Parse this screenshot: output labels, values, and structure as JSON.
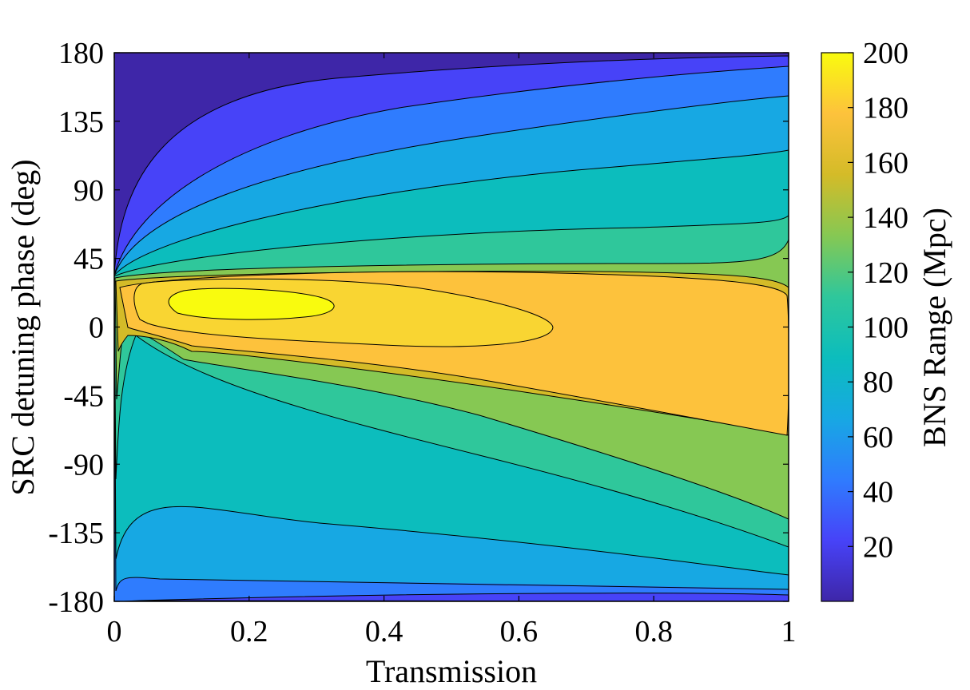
{
  "chart_data": {
    "type": "contour",
    "xlabel": "Transmission",
    "ylabel": "SRC detuning phase (deg)",
    "colorbar_label": "BNS Range (Mpc)",
    "xlim": [
      0,
      1
    ],
    "ylim": [
      -180,
      180
    ],
    "x_ticks": [
      0,
      0.2,
      0.4,
      0.6,
      0.8,
      1
    ],
    "x_tick_labels": [
      "0",
      "0.2",
      "0.4",
      "0.6",
      "0.8",
      "1"
    ],
    "y_ticks": [
      180,
      135,
      90,
      45,
      0,
      -45,
      -90,
      -135,
      -180
    ],
    "y_tick_labels": [
      "180",
      "135",
      "90",
      "45",
      "0",
      "-45",
      "-90",
      "-135",
      "-180"
    ],
    "colorbar_range": [
      0,
      200
    ],
    "colorbar_ticks": [
      200,
      180,
      160,
      140,
      120,
      100,
      80,
      60,
      40,
      20
    ],
    "colorbar_tick_labels": [
      "200",
      "180",
      "160",
      "140",
      "120",
      "100",
      "80",
      "60",
      "40",
      "20"
    ],
    "contour_levels": [
      20,
      40,
      60,
      80,
      100,
      120,
      140,
      160,
      180
    ],
    "peak": {
      "transmission": 0.18,
      "detuning_deg": 15,
      "range_mpc": 200
    },
    "colormap": [
      "#3e26a8",
      "#4743f8",
      "#2f7cfe",
      "#17a8e3",
      "#0cbdbd",
      "#2fc79b",
      "#86c853",
      "#d4bb28",
      "#fdc23c",
      "#f9fb0e"
    ]
  }
}
